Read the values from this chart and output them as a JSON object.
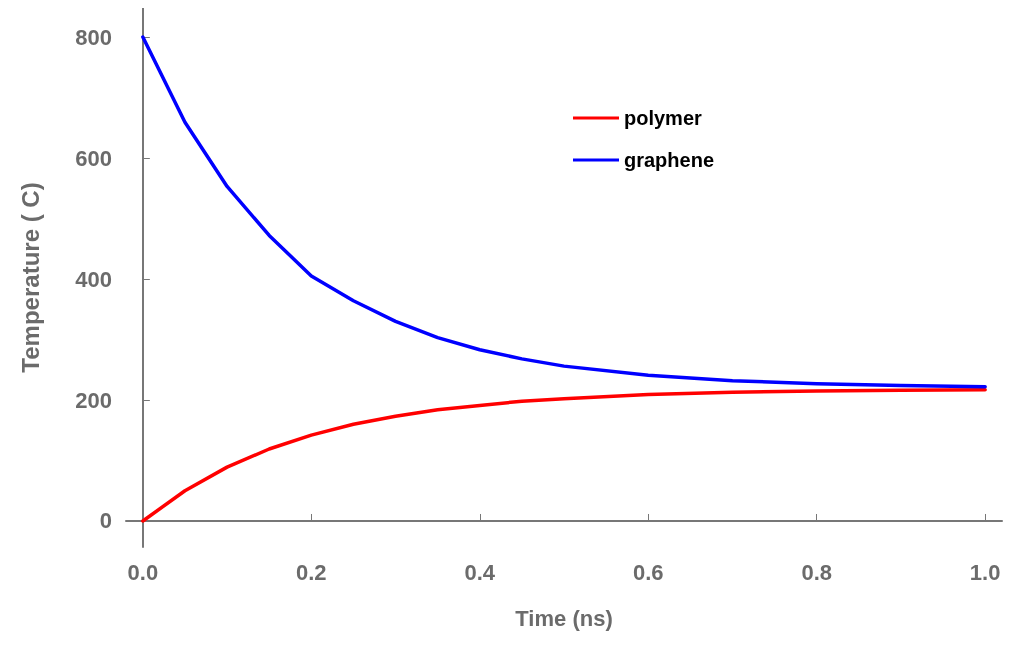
{
  "chart_data": {
    "type": "line",
    "xlabel": "Time (ns)",
    "ylabel": "Temperature ( C)",
    "x": [
      0,
      0.05,
      0.1,
      0.15,
      0.2,
      0.25,
      0.3,
      0.35,
      0.4,
      0.45,
      0.5,
      0.6,
      0.7,
      0.8,
      0.9,
      1.0
    ],
    "series": [
      {
        "name": "polymer",
        "color": "#ff0000",
        "values": [
          0,
          50,
          89,
          119,
          142,
          160,
          173,
          184,
          191,
          198,
          202,
          209,
          213,
          215,
          216,
          217
        ]
      },
      {
        "name": "graphene",
        "color": "#0000ff",
        "values": [
          800,
          659,
          553,
          472,
          405,
          364,
          330,
          303,
          283,
          268,
          256,
          241,
          232,
          227,
          224,
          222
        ]
      }
    ],
    "xlim": [
      -0.02,
      1.02
    ],
    "xticks": [
      {
        "value": 0,
        "label": "0.0"
      },
      0.2,
      0.4,
      0.6,
      0.8,
      {
        "value": 1,
        "label": "1.0"
      }
    ],
    "ylim": [
      -43,
      848
    ],
    "yticks": [
      0,
      200,
      400,
      600,
      800
    ],
    "grid": false,
    "legend": "top right",
    "marker": "none",
    "line_style": "solid"
  }
}
